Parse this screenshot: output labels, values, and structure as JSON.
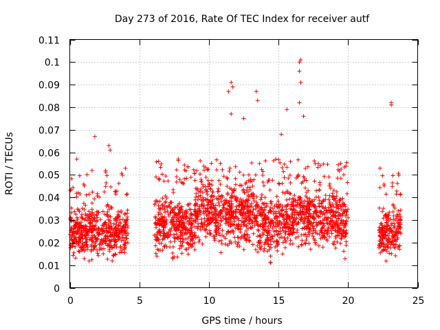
{
  "chart_data": {
    "type": "scatter",
    "title": "Day 273 of 2016, Rate Of TEC Index for receiver autf",
    "xlabel": "GPS time / hours",
    "ylabel": "ROTI / TECUs",
    "xlim": [
      0,
      25
    ],
    "ylim": [
      0,
      0.11
    ],
    "x_ticks": [
      0,
      5,
      10,
      15,
      20,
      25
    ],
    "x_tick_labels": [
      "0",
      "5",
      "10",
      "15",
      "20",
      "25"
    ],
    "y_ticks": [
      0,
      0.01,
      0.02,
      0.03,
      0.04,
      0.05,
      0.06,
      0.07,
      0.08,
      0.09,
      0.1,
      0.11
    ],
    "y_tick_labels": [
      "0",
      "0.01",
      "0.02",
      "0.03",
      "0.04",
      "0.05",
      "0.06",
      "0.07",
      "0.08",
      "0.09",
      "0.1",
      "0.11"
    ],
    "grid": true,
    "marker": "+",
    "marker_color": "#ff0000",
    "series": [
      {
        "name": "ROTI",
        "segments": [
          {
            "x_start": 0.0,
            "x_end": 4.2,
            "y_min": 0.005,
            "y_typical_low": 0.01,
            "y_typical_high": 0.04
          },
          {
            "x_start": 6.1,
            "x_end": 20.0,
            "y_min": 0.005,
            "y_typical_low": 0.01,
            "y_typical_high": 0.045
          },
          {
            "x_start": 22.2,
            "x_end": 23.8,
            "y_min": 0.006,
            "y_typical_low": 0.01,
            "y_typical_high": 0.04
          }
        ],
        "notable_points": [
          {
            "x": 0.5,
            "y": 0.057
          },
          {
            "x": 1.8,
            "y": 0.067
          },
          {
            "x": 1.6,
            "y": 0.052
          },
          {
            "x": 2.8,
            "y": 0.063
          },
          {
            "x": 2.9,
            "y": 0.061
          },
          {
            "x": 4.0,
            "y": 0.053
          },
          {
            "x": 7.8,
            "y": 0.057
          },
          {
            "x": 11.4,
            "y": 0.087
          },
          {
            "x": 11.6,
            "y": 0.091
          },
          {
            "x": 11.7,
            "y": 0.089
          },
          {
            "x": 11.6,
            "y": 0.077
          },
          {
            "x": 12.5,
            "y": 0.075
          },
          {
            "x": 13.4,
            "y": 0.087
          },
          {
            "x": 13.5,
            "y": 0.083
          },
          {
            "x": 15.6,
            "y": 0.079
          },
          {
            "x": 15.2,
            "y": 0.068
          },
          {
            "x": 16.5,
            "y": 0.1
          },
          {
            "x": 16.6,
            "y": 0.101
          },
          {
            "x": 16.5,
            "y": 0.096
          },
          {
            "x": 16.6,
            "y": 0.091
          },
          {
            "x": 16.5,
            "y": 0.082
          },
          {
            "x": 16.8,
            "y": 0.076
          },
          {
            "x": 23.1,
            "y": 0.082
          },
          {
            "x": 23.1,
            "y": 0.081
          },
          {
            "x": 22.3,
            "y": 0.053
          }
        ]
      }
    ]
  }
}
